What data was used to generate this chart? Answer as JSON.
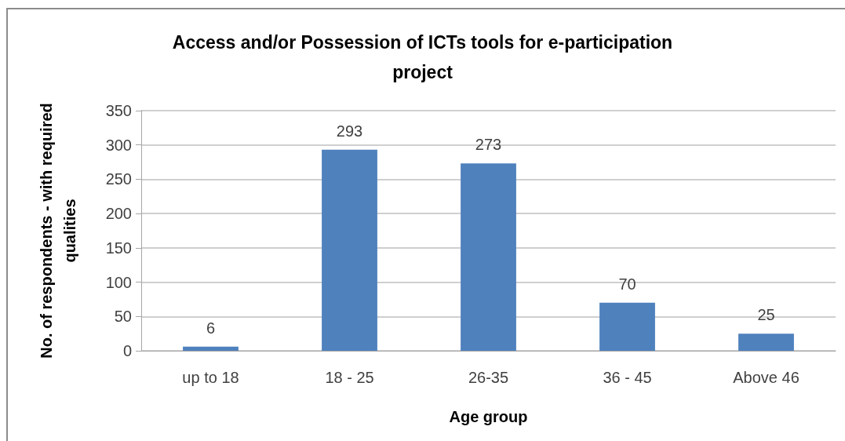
{
  "chart_data": {
    "type": "bar",
    "title": "Access and/or Possession of ICTs tools for e-participation project",
    "xlabel": "Age group",
    "ylabel": "No. of respondents - with required qualities",
    "categories": [
      "up to 18",
      "18 - 25",
      "26-35",
      "36 - 45",
      "Above 46"
    ],
    "values": [
      6,
      293,
      273,
      70,
      25
    ],
    "color": "#4f81bd",
    "ylim": [
      0,
      350
    ],
    "yticks": [
      0,
      50,
      100,
      150,
      200,
      250,
      300,
      350
    ],
    "grid": "y",
    "data_labels": true
  }
}
